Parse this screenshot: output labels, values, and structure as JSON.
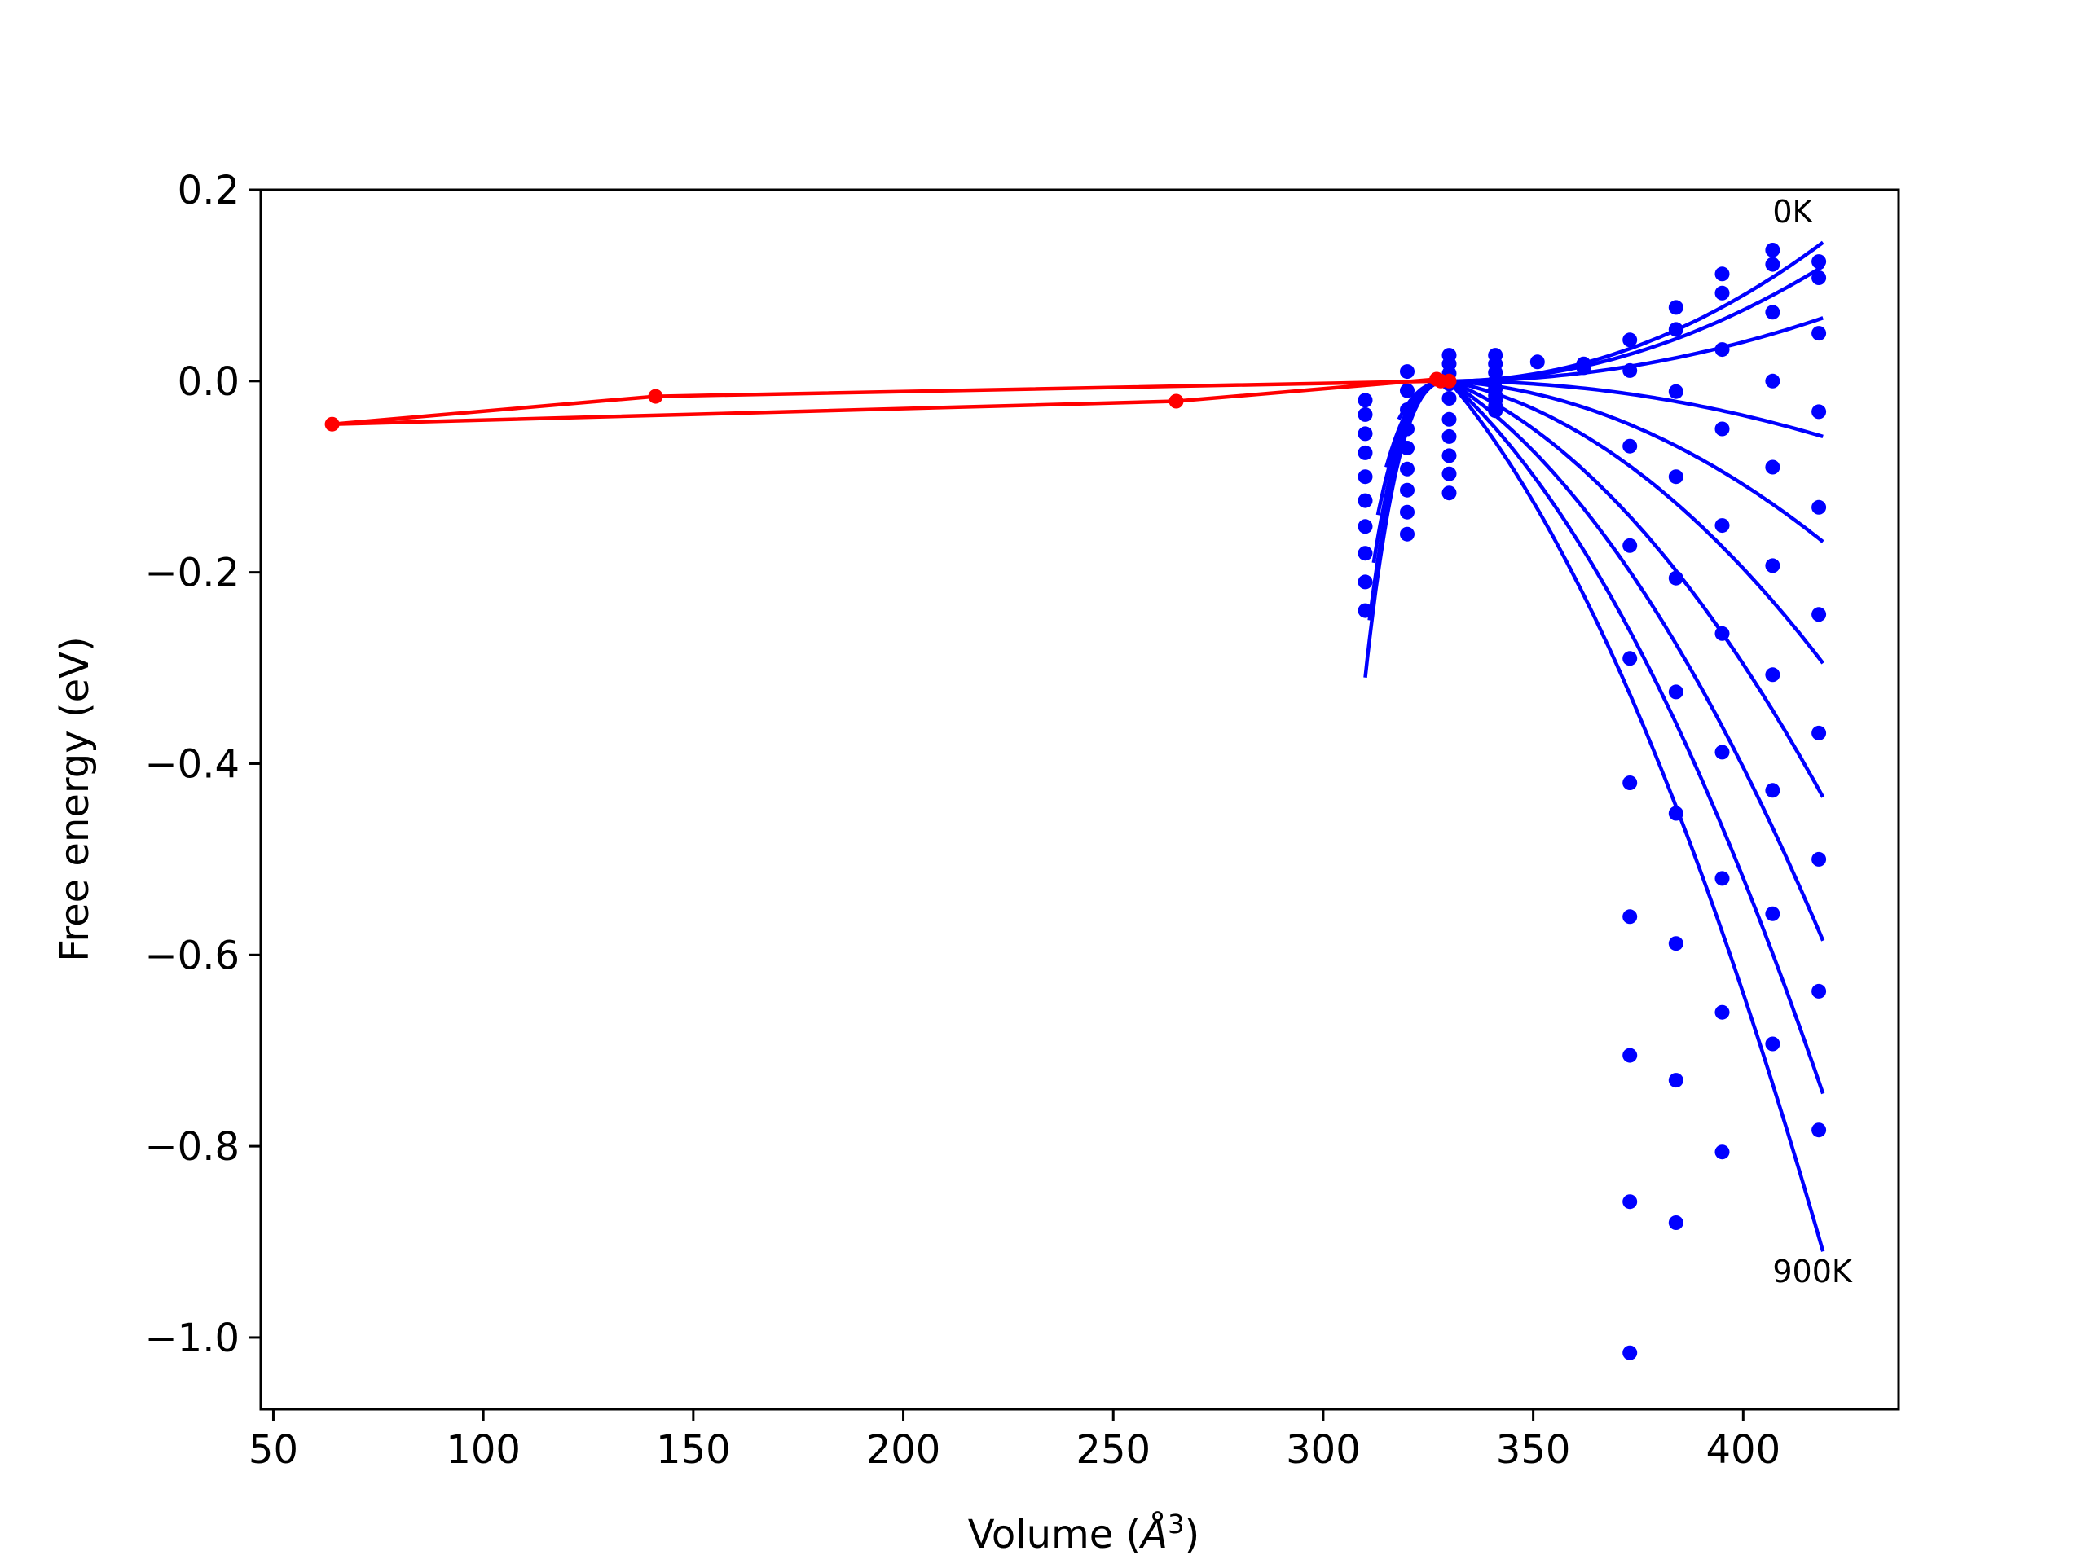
{
  "chart_data": {
    "type": "scatter",
    "xlabel": "Volume (Å³)",
    "xlabel_main": "Volume (",
    "xlabel_unit": "Å",
    "xlabel_sup": "3",
    "xlabel_close": ")",
    "ylabel": "Free energy (eV)",
    "xlim": [
      47,
      437
    ],
    "ylim": [
      -1.075,
      0.2
    ],
    "x_ticks": [
      50,
      100,
      150,
      200,
      250,
      300,
      350,
      400
    ],
    "x_tick_labels": [
      "50",
      "100",
      "150",
      "200",
      "250",
      "300",
      "350",
      "400"
    ],
    "y_ticks": [
      0.2,
      0.0,
      -0.2,
      -0.4,
      -0.6,
      -0.8,
      -1.0
    ],
    "y_tick_labels": [
      "0.2",
      "0.0",
      "−0.2",
      "−0.4",
      "−0.6",
      "−0.8",
      "−1.0"
    ],
    "grid": false,
    "annotations": [
      {
        "text": "0K",
        "x": 407,
        "y": 0.178
      },
      {
        "text": "900K",
        "x": 407,
        "y": -0.93
      }
    ],
    "colors": {
      "fit_curves": "#0000ff",
      "data_points": "#0000ff",
      "min_path": "#ff0000",
      "axes": "#000000"
    },
    "curve_x_range": [
      330,
      419
    ],
    "fit_curves": [
      {
        "a": 0.145,
        "b": 0.0
      },
      {
        "a": 0.12,
        "b": 0.0
      },
      {
        "a": 0.066,
        "b": 0.0
      },
      {
        "a": -0.058,
        "b": 0.0
      },
      {
        "a": -0.168,
        "b": -0.025
      },
      {
        "a": -0.295,
        "b": -0.08
      },
      {
        "a": -0.435,
        "b": -0.16
      },
      {
        "a": -0.585,
        "b": -0.25
      },
      {
        "a": -0.745,
        "b": -0.35
      },
      {
        "a": -0.91,
        "b": -0.46
      }
    ],
    "left_curves": [
      {
        "x_start": 310,
        "y_start": -0.31
      },
      {
        "x_start": 311,
        "y_start": -0.25
      },
      {
        "x_start": 312,
        "y_start": -0.19
      },
      {
        "x_start": 313,
        "y_start": -0.14
      },
      {
        "x_start": 315,
        "y_start": -0.09
      },
      {
        "x_start": 318,
        "y_start": -0.04
      }
    ],
    "data_points": [
      [
        407,
        0.137
      ],
      [
        407,
        0.122
      ],
      [
        407,
        0.072
      ],
      [
        407,
        0.0
      ],
      [
        407,
        -0.09
      ],
      [
        407,
        -0.193
      ],
      [
        407,
        -0.307
      ],
      [
        407,
        -0.428
      ],
      [
        407,
        -0.557
      ],
      [
        407,
        -0.693
      ],
      [
        418,
        0.125
      ],
      [
        418,
        0.108
      ],
      [
        418,
        0.05
      ],
      [
        418,
        -0.032
      ],
      [
        418,
        -0.132
      ],
      [
        418,
        -0.244
      ],
      [
        418,
        -0.368
      ],
      [
        418,
        -0.5
      ],
      [
        418,
        -0.638
      ],
      [
        418,
        -0.783
      ],
      [
        395,
        0.112
      ],
      [
        395,
        0.092
      ],
      [
        395,
        0.033
      ],
      [
        395,
        -0.05
      ],
      [
        395,
        -0.151
      ],
      [
        395,
        -0.264
      ],
      [
        395,
        -0.388
      ],
      [
        395,
        -0.52
      ],
      [
        395,
        -0.66
      ],
      [
        395,
        -0.806
      ],
      [
        384,
        0.077
      ],
      [
        384,
        0.054
      ],
      [
        384,
        -0.011
      ],
      [
        384,
        -0.1
      ],
      [
        384,
        -0.206
      ],
      [
        384,
        -0.325
      ],
      [
        384,
        -0.452
      ],
      [
        384,
        -0.588
      ],
      [
        384,
        -0.731
      ],
      [
        384,
        -0.88
      ],
      [
        373,
        0.043
      ],
      [
        373,
        0.011
      ],
      [
        373,
        -0.068
      ],
      [
        373,
        -0.172
      ],
      [
        373,
        -0.29
      ],
      [
        373,
        -0.42
      ],
      [
        373,
        -0.56
      ],
      [
        373,
        -0.705
      ],
      [
        373,
        -0.858
      ],
      [
        373,
        -1.016
      ],
      [
        362,
        0.018
      ],
      [
        362,
        0.014
      ],
      [
        351,
        0.02
      ],
      [
        341,
        0.027
      ],
      [
        341,
        0.018
      ],
      [
        341,
        0.009
      ],
      [
        341,
        0.0
      ],
      [
        341,
        -0.008
      ],
      [
        341,
        -0.015
      ],
      [
        341,
        -0.02
      ],
      [
        341,
        -0.026
      ],
      [
        341,
        -0.031
      ],
      [
        330,
        0.027
      ],
      [
        330,
        0.018
      ],
      [
        330,
        0.008
      ],
      [
        330,
        -0.003
      ],
      [
        330,
        -0.018
      ],
      [
        330,
        -0.04
      ],
      [
        330,
        -0.058
      ],
      [
        330,
        -0.078
      ],
      [
        330,
        -0.097
      ],
      [
        330,
        -0.117
      ],
      [
        320,
        0.01
      ],
      [
        320,
        -0.01
      ],
      [
        320,
        -0.03
      ],
      [
        320,
        -0.05
      ],
      [
        320,
        -0.07
      ],
      [
        320,
        -0.092
      ],
      [
        320,
        -0.114
      ],
      [
        320,
        -0.137
      ],
      [
        320,
        -0.16
      ],
      [
        310,
        -0.02
      ],
      [
        310,
        -0.035
      ],
      [
        310,
        -0.055
      ],
      [
        310,
        -0.075
      ],
      [
        310,
        -0.1
      ],
      [
        310,
        -0.125
      ],
      [
        310,
        -0.152
      ],
      [
        310,
        -0.18
      ],
      [
        310,
        -0.21
      ],
      [
        310,
        -0.24
      ]
    ],
    "min_path": {
      "name": "",
      "x": [
        330,
        327,
        265,
        64,
        141,
        328
      ],
      "y": [
        0.0,
        0.002,
        -0.021,
        -0.045,
        -0.016,
        0.0
      ]
    }
  }
}
